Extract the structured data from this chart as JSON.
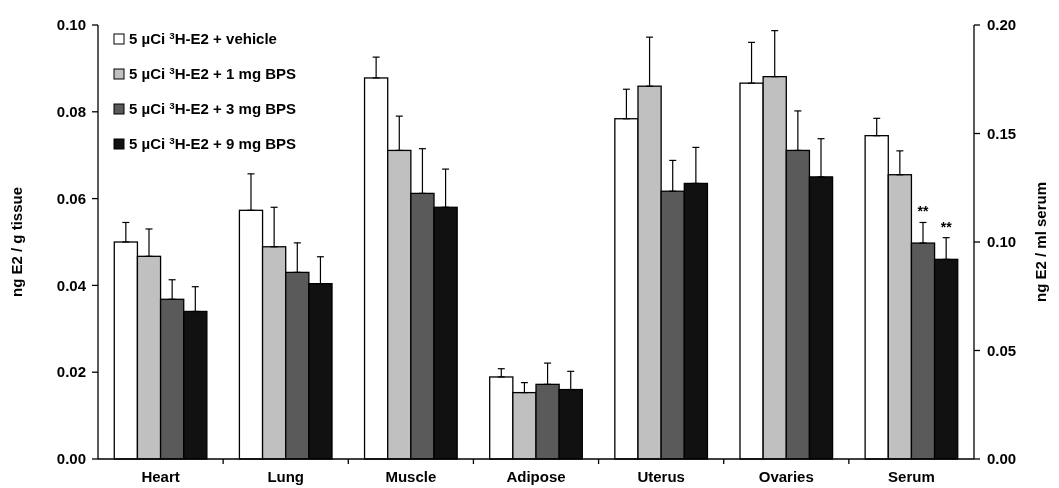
{
  "chart_data": {
    "type": "bar",
    "ylabel": "ng E2 / g tissue",
    "y2label": "ng E2 / ml serum",
    "categories": [
      "Heart",
      "Lung",
      "Muscle",
      "Adipose",
      "Uterus",
      "Ovaries",
      "Serum"
    ],
    "ylim": [
      0,
      0.1
    ],
    "yticks": [
      {
        "value": 0,
        "label": "0.00"
      },
      {
        "value": 0.02,
        "label": "0.02"
      },
      {
        "value": 0.04,
        "label": "0.04"
      },
      {
        "value": 0.06,
        "label": "0.06"
      },
      {
        "value": 0.08,
        "label": "0.08"
      },
      {
        "value": 0.1,
        "label": "0.10"
      }
    ],
    "y2lim": [
      0,
      0.2
    ],
    "y2ticks": [
      {
        "value": 0,
        "label": "0.00"
      },
      {
        "value": 0.05,
        "label": "0.05"
      },
      {
        "value": 0.1,
        "label": "0.10"
      },
      {
        "value": 0.15,
        "label": "0.15"
      },
      {
        "value": 0.2,
        "label": "0.20"
      }
    ],
    "legend": "top left",
    "grid": false,
    "series": [
      {
        "name": "5 µCi $^{3}$H-E2 + vehicle",
        "color": "#ffffff",
        "values": [
          0.05,
          0.0573,
          0.0878,
          0.0189,
          0.0784,
          0.0866,
          null
        ],
        "errors": [
          [
            0.05,
            0.0545
          ],
          [
            0.0573,
            0.0657
          ],
          [
            0.0878,
            0.0926
          ],
          [
            0.0189,
            0.0208
          ],
          [
            0.0784,
            0.0852
          ],
          [
            0.0866,
            0.096
          ],
          null
        ]
      },
      {
        "name": "5 µCi $^{3}$H-E2 + 1 mg BPS",
        "color": "#c0c0c0",
        "values": [
          0.0467,
          0.0489,
          0.0711,
          0.0153,
          0.0859,
          0.0881,
          null
        ],
        "errors": [
          [
            0.0467,
            0.053
          ],
          [
            0.0489,
            0.058
          ],
          [
            0.0711,
            0.079
          ],
          [
            0.0153,
            0.0176
          ],
          [
            0.0859,
            0.0972
          ],
          [
            0.0881,
            0.0987
          ],
          null
        ]
      },
      {
        "name": "5 µCi $^{3}$H-E2 + 3 mg BPS",
        "color": "#5a5a5a",
        "values": [
          0.0368,
          0.043,
          0.0612,
          0.0172,
          0.0617,
          0.0711,
          null
        ],
        "errors": [
          [
            0.0368,
            0.0413
          ],
          [
            0.043,
            0.0498
          ],
          [
            0.0612,
            0.0715
          ],
          [
            0.0172,
            0.0221
          ],
          [
            0.0617,
            0.0688
          ],
          [
            0.0711,
            0.0802
          ],
          null
        ]
      },
      {
        "name": "5 µCi $^{3}$H-E2 + 9 mg BPS",
        "color": "#111111",
        "values": [
          0.034,
          0.0404,
          0.058,
          0.016,
          0.0635,
          0.065,
          null
        ],
        "errors": [
          [
            0.034,
            0.0397
          ],
          [
            0.0404,
            0.0466
          ],
          [
            0.058,
            0.0668
          ],
          [
            0.016,
            0.0202
          ],
          [
            0.0635,
            0.0718
          ],
          [
            0.065,
            0.0738
          ],
          null
        ]
      },
      {
        "color": "#ffffff",
        "axis": "y2",
        "values": [
          null,
          null,
          null,
          null,
          null,
          null,
          0.149
        ],
        "errors": [
          null,
          null,
          null,
          null,
          null,
          null,
          [
            0.149,
            0.157
          ]
        ]
      },
      {
        "color": "#c0c0c0",
        "axis": "y2",
        "values": [
          null,
          null,
          null,
          null,
          null,
          null,
          0.131
        ],
        "errors": [
          null,
          null,
          null,
          null,
          null,
          null,
          [
            0.131,
            0.142
          ]
        ]
      },
      {
        "color": "#5a5a5a",
        "axis": "y2",
        "values": [
          null,
          null,
          null,
          null,
          null,
          null,
          0.0995
        ],
        "errors": [
          null,
          null,
          null,
          null,
          null,
          null,
          [
            0.0995,
            0.109
          ]
        ]
      },
      {
        "color": "#111111",
        "axis": "y2",
        "values": [
          null,
          null,
          null,
          null,
          null,
          null,
          0.092
        ],
        "errors": [
          null,
          null,
          null,
          null,
          null,
          null,
          [
            0.092,
            0.102
          ]
        ]
      }
    ],
    "annotations": [
      "**",
      "**"
    ]
  }
}
